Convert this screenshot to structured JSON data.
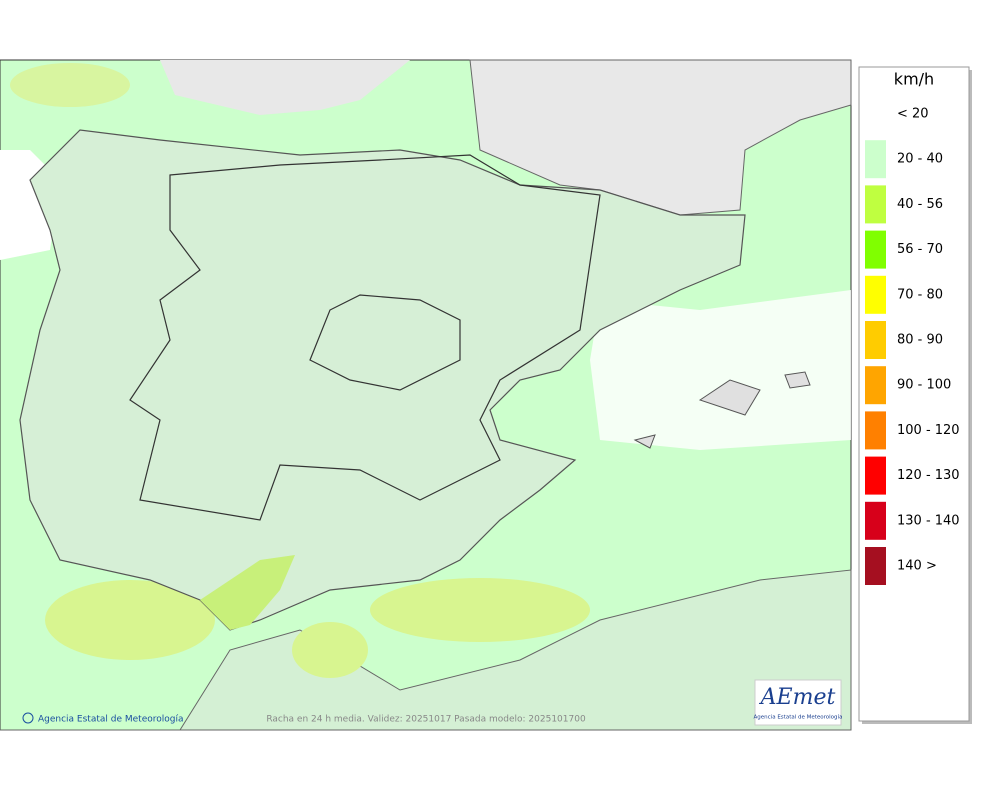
{
  "legend": {
    "title": "km/h",
    "items": [
      {
        "label": "< 20",
        "color": "#ffffff"
      },
      {
        "label": "20 - 40",
        "color": "#ccffcc"
      },
      {
        "label": "40 - 56",
        "color": "#bfff40"
      },
      {
        "label": "56 - 70",
        "color": "#80ff00"
      },
      {
        "label": "70 - 80",
        "color": "#ffff00"
      },
      {
        "label": "80 - 90",
        "color": "#ffcc00"
      },
      {
        "label": "90 - 100",
        "color": "#ffa500"
      },
      {
        "label": "100 - 120",
        "color": "#ff8000"
      },
      {
        "label": "120 - 130",
        "color": "#ff0000"
      },
      {
        "label": "130 - 140",
        "color": "#d7001a"
      },
      {
        "label": "140 >",
        "color": "#a50f20"
      }
    ]
  },
  "footer": {
    "credit": "Agencia Estatal de Meteorología",
    "caption": "Racha en 24 h media. Validez: 20251017 Pasada modelo: 2025101700"
  },
  "logo": {
    "text": "AEmet",
    "subtitle": "Agencia Estatal de Meteorología"
  }
}
